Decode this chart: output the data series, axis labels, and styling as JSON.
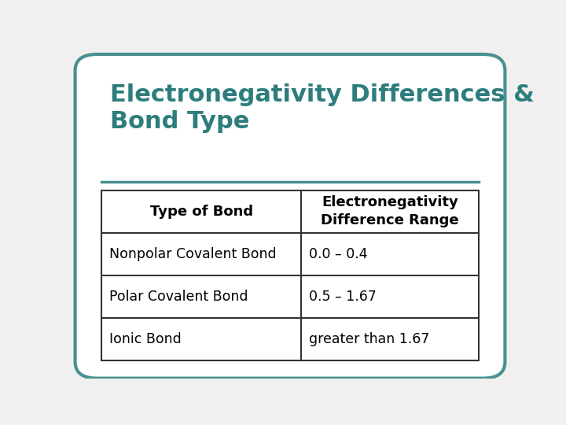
{
  "title": "Electronegativity Differences &\nBond Type",
  "title_color": "#2E7D7D",
  "background_color": "#F0F0F0",
  "card_bg": "#FFFFFF",
  "border_color": "#4A9090",
  "separator_color": "#4A9090",
  "col_headers": [
    "Type of Bond",
    "Electronegativity\nDifference Range"
  ],
  "rows": [
    [
      "Nonpolar Covalent Bond",
      "0.0 – 0.4"
    ],
    [
      "Polar Covalent Bond",
      "0.5 – 1.67"
    ],
    [
      "Ionic Bond",
      "greater than 1.67"
    ]
  ],
  "table_border_color": "#333333",
  "header_font_size": 13,
  "row_font_size": 12.5,
  "title_font_size": 22
}
